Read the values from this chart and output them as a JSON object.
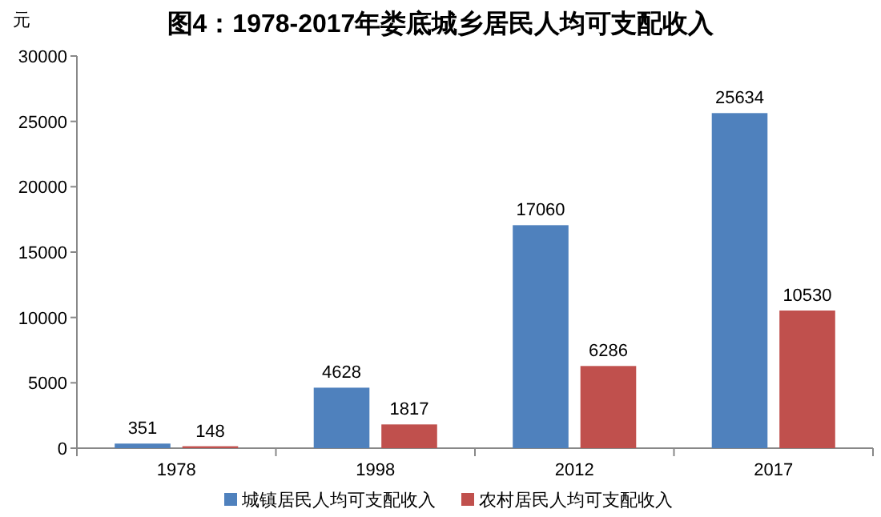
{
  "chart_data": {
    "type": "bar",
    "title": "图4：1978-2017年娄底城乡居民人均可支配收入",
    "ylabel": "元",
    "categories": [
      "1978",
      "1998",
      "2012",
      "2017"
    ],
    "series": [
      {
        "name": "城镇居民人均可支配收入",
        "color": "#4f81bd",
        "values": [
          351,
          4628,
          17060,
          25634
        ]
      },
      {
        "name": "农村居民人均可支配收入",
        "color": "#c0504d",
        "values": [
          148,
          1817,
          6286,
          10530
        ]
      }
    ],
    "ylim": [
      0,
      30000
    ],
    "yticks": [
      0,
      5000,
      10000,
      15000,
      20000,
      25000,
      30000
    ],
    "data_labels": true,
    "grid": false,
    "legend": "bottom"
  }
}
